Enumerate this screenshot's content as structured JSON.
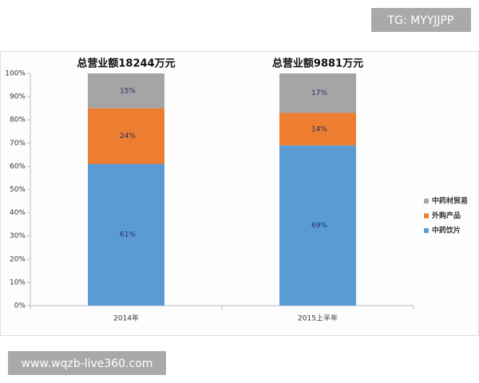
{
  "chart_data": {
    "type": "stacked_bar",
    "annotations": [
      "总营业额18244万元",
      "总营业额9881万元"
    ],
    "categories": [
      "2014年",
      "2015上半年"
    ],
    "series": [
      {
        "name": "中药饮片",
        "color": "#5b9bd5",
        "values": [
          61,
          69
        ],
        "value_labels": [
          "61%",
          "69%"
        ]
      },
      {
        "name": "外购产品",
        "color": "#ed7d31",
        "values": [
          24,
          14
        ],
        "value_labels": [
          "24%",
          "14%"
        ]
      },
      {
        "name": "中药材贸易",
        "color": "#a5a5a5",
        "values": [
          15,
          17
        ],
        "value_labels": [
          "15%",
          "17%"
        ]
      }
    ],
    "ylim": [
      0,
      100
    ],
    "yticks": [
      {
        "value": 0,
        "label": "0%"
      },
      {
        "value": 10,
        "label": "10%"
      },
      {
        "value": 20,
        "label": "20%"
      },
      {
        "value": 30,
        "label": "30%"
      },
      {
        "value": 40,
        "label": "40%"
      },
      {
        "value": 50,
        "label": "50%"
      },
      {
        "value": 60,
        "label": "60%"
      },
      {
        "value": 70,
        "label": "70%"
      },
      {
        "value": 80,
        "label": "80%"
      },
      {
        "value": 90,
        "label": "90%"
      },
      {
        "value": 100,
        "label": "100%"
      }
    ],
    "grid": false,
    "legend": "right"
  },
  "watermarks": [
    "TG: MYYJJPP",
    "www.wqzb-live360.com"
  ]
}
